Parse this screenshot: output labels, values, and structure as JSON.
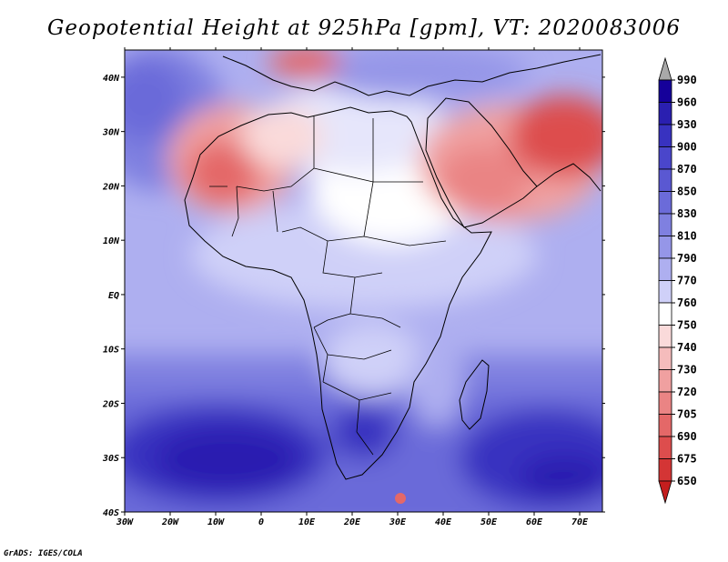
{
  "title": "Geopotential Height at 925hPa [gpm], VT: 2020083006",
  "credit": "GrADS: IGES/COLA",
  "map": {
    "lon_range": [
      -30,
      75
    ],
    "lat_range": [
      -40,
      45
    ],
    "x_ticks": [
      "30W",
      "20W",
      "10W",
      "0",
      "10E",
      "20E",
      "30E",
      "40E",
      "50E",
      "60E",
      "70E"
    ],
    "y_ticks": [
      "40N",
      "30N",
      "20N",
      "10N",
      "EQ",
      "10S",
      "20S",
      "30S",
      "40S"
    ]
  },
  "colorbar": {
    "levels": [
      "990",
      "960",
      "930",
      "900",
      "870",
      "850",
      "830",
      "810",
      "790",
      "770",
      "760",
      "750",
      "740",
      "730",
      "720",
      "705",
      "690",
      "675",
      "650"
    ],
    "colors": [
      "#15009a",
      "#2a1fb0",
      "#3832c0",
      "#4a46cb",
      "#5a58d2",
      "#6b6bd9",
      "#7f80e0",
      "#9596e8",
      "#aeaff0",
      "#cfd0f8",
      "#ffffff",
      "#fadada",
      "#f5bcbc",
      "#f0a0a0",
      "#ea8484",
      "#e46868",
      "#dd4d4d",
      "#d43535",
      "#c41e1e"
    ]
  }
}
